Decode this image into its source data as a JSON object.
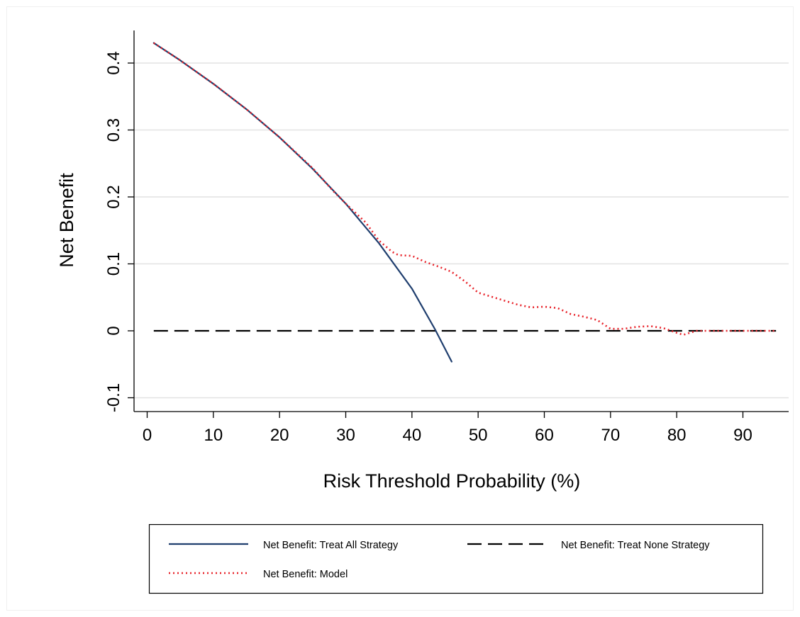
{
  "chart_data": {
    "type": "line",
    "title": "",
    "xlabel": "Risk Threshold Probability (%)",
    "ylabel": "Net Benefit",
    "xlim": [
      0,
      96
    ],
    "ylim": [
      -0.12,
      0.45
    ],
    "xticks": [
      0,
      10,
      20,
      30,
      40,
      50,
      60,
      70,
      80,
      90
    ],
    "xtick_labels": [
      "0",
      "10",
      "20",
      "30",
      "40",
      "50",
      "60",
      "70",
      "80",
      "90"
    ],
    "yticks": [
      -0.1,
      0,
      0.1,
      0.2,
      0.3,
      0.4
    ],
    "ytick_labels": [
      "-0.1",
      "0",
      "0.1",
      "0.2",
      "0.3",
      "0.4"
    ],
    "grid": "horizontal",
    "legend_position": "bottom",
    "series": [
      {
        "name": "Net Benefit: Treat All Strategy",
        "color": "#1f3e6e",
        "style": "solid",
        "x": [
          1,
          5,
          10,
          15,
          20,
          25,
          30,
          35,
          40,
          43.5,
          46
        ],
        "y": [
          0.43,
          0.404,
          0.369,
          0.331,
          0.289,
          0.242,
          0.19,
          0.131,
          0.063,
          0.002,
          -0.046
        ]
      },
      {
        "name": "Net Benefit: Treat None Strategy",
        "color": "#000000",
        "style": "dashed",
        "x": [
          1,
          95
        ],
        "y": [
          0,
          0
        ]
      },
      {
        "name": "Net Benefit: Model",
        "color": "#e8242b",
        "style": "dotted",
        "x": [
          1,
          5,
          10,
          15,
          20,
          25,
          28,
          30,
          33,
          35,
          37,
          38,
          40,
          42,
          44,
          46,
          48,
          50,
          53,
          56,
          58,
          60,
          62,
          64,
          66,
          68,
          70,
          72,
          74,
          76,
          78,
          80,
          81,
          83,
          85,
          90,
          95
        ],
        "y": [
          0.43,
          0.404,
          0.369,
          0.331,
          0.289,
          0.243,
          0.21,
          0.19,
          0.162,
          0.135,
          0.118,
          0.113,
          0.112,
          0.103,
          0.096,
          0.088,
          0.074,
          0.057,
          0.048,
          0.039,
          0.035,
          0.036,
          0.034,
          0.025,
          0.021,
          0.016,
          0.003,
          0.003,
          0.006,
          0.007,
          0.004,
          -0.003,
          -0.006,
          0,
          0,
          0,
          0
        ]
      }
    ]
  }
}
